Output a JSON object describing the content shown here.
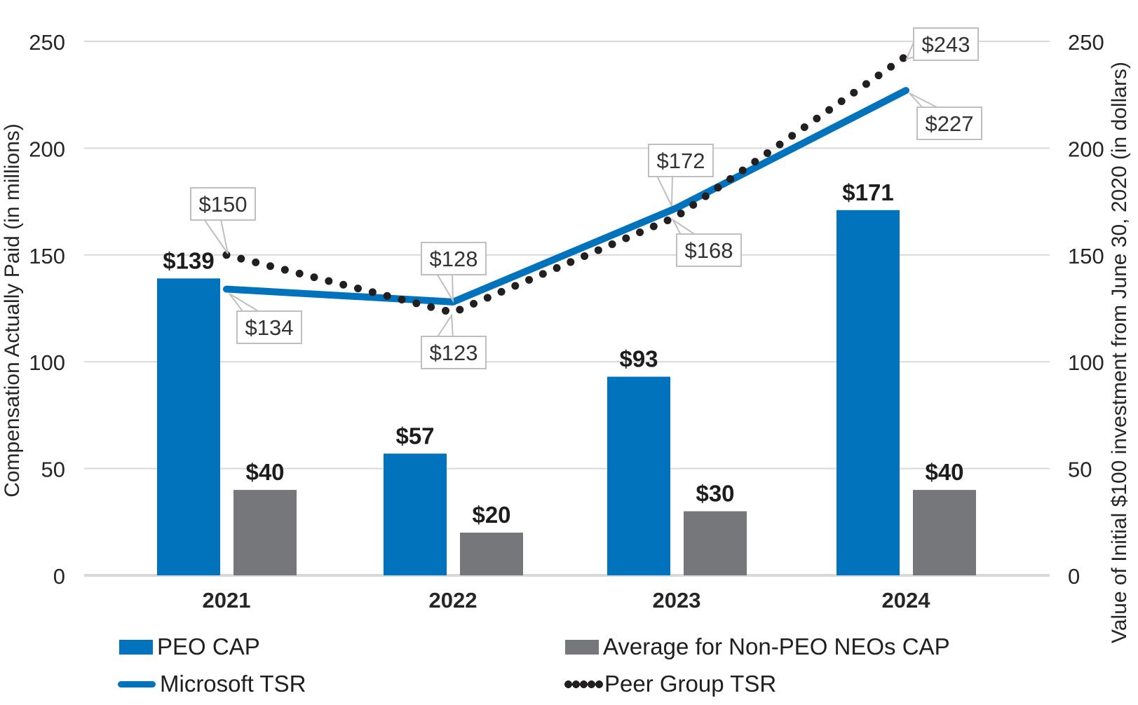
{
  "figure": {
    "left_axis_title": "Compensation Actually Paid (in millions)",
    "right_axis_title": "Value of Initial $100 investment from June 30, 2020 (in dollars)"
  },
  "chart_data": {
    "type": "bar+line combo",
    "categories": [
      "2021",
      "2022",
      "2023",
      "2024"
    ],
    "bar_series": [
      {
        "name": "PEO CAP",
        "color": "#0073BC",
        "values": [
          139,
          57,
          93,
          171
        ],
        "labels": [
          "$139",
          "$57",
          "$93",
          "$171"
        ]
      },
      {
        "name": "Average for Non-PEO NEOs CAP",
        "color": "#76777B",
        "values": [
          40,
          20,
          30,
          40
        ],
        "labels": [
          "$40",
          "$20",
          "$30",
          "$40"
        ]
      }
    ],
    "line_series": [
      {
        "name": "Microsoft TSR",
        "style": "solid",
        "color": "#0073BC",
        "values": [
          134,
          128,
          172,
          227
        ],
        "labels": [
          "$134",
          "$128",
          "$172",
          "$227"
        ]
      },
      {
        "name": "Peer Group TSR",
        "style": "dotted",
        "color": "#231F20",
        "values": [
          150,
          123,
          168,
          243
        ],
        "labels": [
          "$150",
          "$123",
          "$168",
          "$243"
        ]
      }
    ],
    "left_axis": {
      "label": "Compensation Actually Paid (in millions)",
      "ticks": [
        0,
        50,
        100,
        150,
        200,
        250
      ],
      "range": [
        0,
        250
      ]
    },
    "right_axis": {
      "label": "Value of Initial $100 investment from June 30, 2020 (in dollars)",
      "ticks": [
        0,
        50,
        100,
        150,
        200,
        250
      ],
      "range": [
        0,
        250
      ]
    },
    "grid": true,
    "legend_position": "bottom",
    "colors": {
      "bar_blue": "#0073BC",
      "bar_gray": "#76777B",
      "line_blue": "#0073BC",
      "line_dotted": "#231F20",
      "gridline": "#D9D9D9",
      "tick_text": "#262626",
      "bar_label_text": "#1d1d1d",
      "callout_border": "#BFBFBF",
      "callout_text": "#333333"
    }
  },
  "legend": {
    "items": [
      {
        "label": "PEO CAP",
        "swatch": "bar-blue"
      },
      {
        "label": "Average for Non-PEO NEOs CAP",
        "swatch": "bar-gray"
      },
      {
        "label": "Microsoft TSR",
        "swatch": "line-solid-blue"
      },
      {
        "label": "Peer Group TSR",
        "swatch": "line-dotted-black"
      }
    ]
  }
}
